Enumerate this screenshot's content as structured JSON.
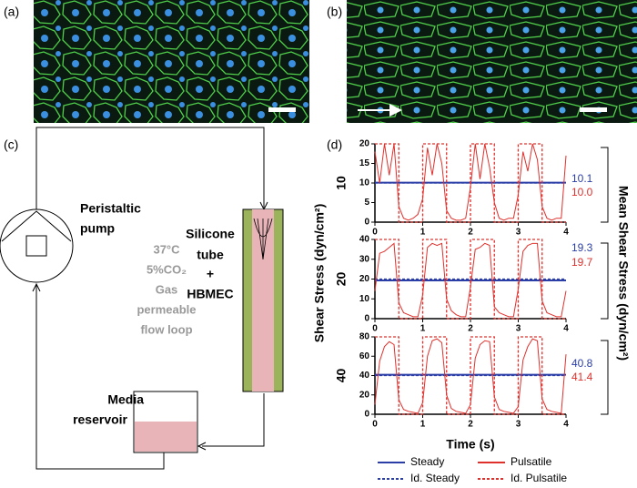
{
  "panels": {
    "a": "(a)",
    "b": "(b)",
    "c": "(c)",
    "d": "(d)"
  },
  "diagram": {
    "pump": [
      "Peristaltic",
      "pump"
    ],
    "loop_note": [
      "37°C",
      "5%CO₂",
      "Gas",
      "permeable",
      "flow loop"
    ],
    "tube": [
      "Silicone",
      "tube",
      "+",
      "HBMEC"
    ],
    "reservoir": [
      "Media",
      "reservoir"
    ]
  },
  "figure_d": {
    "y_label": "Shear Stress (dyn/cm²)",
    "y2_label": "Mean Shear Stress (dyn/cm²)",
    "x_label": "Time (s)"
  },
  "chart_data": [
    {
      "type": "line",
      "row_label": "10",
      "xlim": [
        0,
        4
      ],
      "xticks": [
        0,
        1,
        2,
        3,
        4
      ],
      "ylim": [
        0,
        20
      ],
      "yticks": [
        0,
        5,
        10,
        15,
        20
      ],
      "mean_labels": [
        {
          "text": "10.1",
          "color": "#2b3ea8"
        },
        {
          "text": "10.0",
          "color": "#e0302c"
        }
      ],
      "series": [
        {
          "name": "Steady",
          "color": "#2b3ea8",
          "dash": false,
          "x": [
            0,
            4
          ],
          "values": [
            10.1,
            10.1
          ]
        },
        {
          "name": "Id. Steady",
          "color": "#2b3ea8",
          "dash": true,
          "x": [
            0,
            4
          ],
          "values": [
            10,
            10
          ]
        },
        {
          "name": "Pulsatile",
          "color": "#e0302c",
          "dash": false,
          "x": [
            0,
            0.1,
            0.2,
            0.3,
            0.4,
            0.5,
            0.6,
            0.7,
            0.8,
            0.9,
            1,
            1.1,
            1.2,
            1.3,
            1.4,
            1.5,
            1.6,
            1.7,
            1.8,
            1.9,
            2,
            2.1,
            2.2,
            2.3,
            2.4,
            2.5,
            2.6,
            2.7,
            2.8,
            2.9,
            3,
            3.1,
            3.2,
            3.3,
            3.4,
            3.5,
            3.6,
            3.7,
            3.8,
            3.9,
            4
          ],
          "values": [
            18,
            10,
            20,
            12,
            20,
            4,
            1,
            0.5,
            1,
            2,
            6,
            19,
            12,
            20,
            15,
            3,
            1,
            0.5,
            0.5,
            1,
            9,
            20,
            11,
            20,
            14,
            5,
            1,
            0.5,
            1,
            1,
            7,
            18,
            13,
            20,
            16,
            4,
            1,
            0.5,
            1,
            1,
            17
          ]
        },
        {
          "name": "Id. Pulsatile",
          "color": "#e0302c",
          "dash": true,
          "x": [
            0,
            0.5,
            0.5,
            1,
            1,
            1.5,
            1.5,
            2,
            2,
            2.5,
            2.5,
            3,
            3,
            3.5,
            3.5,
            4
          ],
          "values": [
            20,
            20,
            0,
            0,
            20,
            20,
            0,
            0,
            20,
            20,
            0,
            0,
            20,
            20,
            0,
            0
          ]
        }
      ]
    },
    {
      "type": "line",
      "row_label": "20",
      "xlim": [
        0,
        4
      ],
      "xticks": [
        0,
        1,
        2,
        3,
        4
      ],
      "ylim": [
        0,
        40
      ],
      "yticks": [
        0,
        10,
        20,
        30,
        40
      ],
      "mean_labels": [
        {
          "text": "19.3",
          "color": "#2b3ea8"
        },
        {
          "text": "19.7",
          "color": "#e0302c"
        }
      ],
      "series": [
        {
          "color": "#2b3ea8",
          "dash": false,
          "x": [
            0,
            4
          ],
          "values": [
            19.3,
            19.3
          ]
        },
        {
          "color": "#2b3ea8",
          "dash": true,
          "x": [
            0,
            4
          ],
          "values": [
            20,
            20
          ]
        },
        {
          "color": "#e0302c",
          "dash": false,
          "x": [
            0,
            0.1,
            0.2,
            0.3,
            0.4,
            0.5,
            0.6,
            0.7,
            0.8,
            0.9,
            1,
            1.1,
            1.2,
            1.3,
            1.4,
            1.5,
            1.6,
            1.7,
            1.8,
            1.9,
            2,
            2.1,
            2.2,
            2.3,
            2.4,
            2.5,
            2.6,
            2.7,
            2.8,
            2.9,
            3,
            3.1,
            3.2,
            3.3,
            3.4,
            3.5,
            3.6,
            3.7,
            3.8,
            3.9,
            4
          ],
          "values": [
            14,
            33,
            34,
            36,
            38,
            8,
            3,
            2,
            1,
            1,
            12,
            36,
            38,
            37,
            38,
            10,
            4,
            2,
            1,
            1,
            16,
            35,
            36,
            38,
            37,
            6,
            3,
            2,
            1,
            1,
            15,
            34,
            37,
            38,
            38,
            9,
            3,
            2,
            1,
            1,
            14
          ]
        },
        {
          "color": "#e0302c",
          "dash": true,
          "x": [
            0,
            0.5,
            0.5,
            1,
            1,
            1.5,
            1.5,
            2,
            2,
            2.5,
            2.5,
            3,
            3,
            3.5,
            3.5,
            4
          ],
          "values": [
            40,
            40,
            0,
            0,
            40,
            40,
            0,
            0,
            40,
            40,
            0,
            0,
            40,
            40,
            0,
            0
          ]
        }
      ]
    },
    {
      "type": "line",
      "row_label": "40",
      "xlim": [
        0,
        4
      ],
      "xticks": [
        0,
        1,
        2,
        3,
        4
      ],
      "ylim": [
        0,
        80
      ],
      "yticks": [
        0,
        20,
        40,
        60,
        80
      ],
      "mean_labels": [
        {
          "text": "40.8",
          "color": "#2b3ea8"
        },
        {
          "text": "41.4",
          "color": "#e0302c"
        }
      ],
      "series": [
        {
          "color": "#2b3ea8",
          "dash": false,
          "x": [
            0,
            4
          ],
          "values": [
            40.8,
            40.8
          ]
        },
        {
          "color": "#2b3ea8",
          "dash": true,
          "x": [
            0,
            4
          ],
          "values": [
            40,
            40
          ]
        },
        {
          "color": "#e0302c",
          "dash": false,
          "x": [
            0,
            0.1,
            0.2,
            0.3,
            0.4,
            0.5,
            0.6,
            0.7,
            0.8,
            0.9,
            1,
            1.1,
            1.2,
            1.3,
            1.4,
            1.5,
            1.6,
            1.7,
            1.8,
            1.9,
            2,
            2.1,
            2.2,
            2.3,
            2.4,
            2.5,
            2.6,
            2.7,
            2.8,
            2.9,
            3,
            3.1,
            3.2,
            3.3,
            3.4,
            3.5,
            3.6,
            3.7,
            3.8,
            3.9,
            4
          ],
          "values": [
            10,
            55,
            70,
            75,
            72,
            15,
            5,
            3,
            2,
            1,
            12,
            60,
            76,
            78,
            74,
            20,
            6,
            3,
            2,
            1,
            10,
            58,
            72,
            76,
            75,
            18,
            5,
            3,
            2,
            1,
            8,
            56,
            70,
            78,
            76,
            16,
            5,
            3,
            2,
            1,
            62
          ]
        },
        {
          "color": "#e0302c",
          "dash": true,
          "x": [
            0,
            0.5,
            0.5,
            1,
            1,
            1.5,
            1.5,
            2,
            2,
            2.5,
            2.5,
            3,
            3,
            3.5,
            3.5,
            4
          ],
          "values": [
            80,
            80,
            0,
            0,
            80,
            80,
            0,
            0,
            80,
            80,
            0,
            0,
            80,
            80,
            0,
            0
          ]
        }
      ]
    }
  ]
}
